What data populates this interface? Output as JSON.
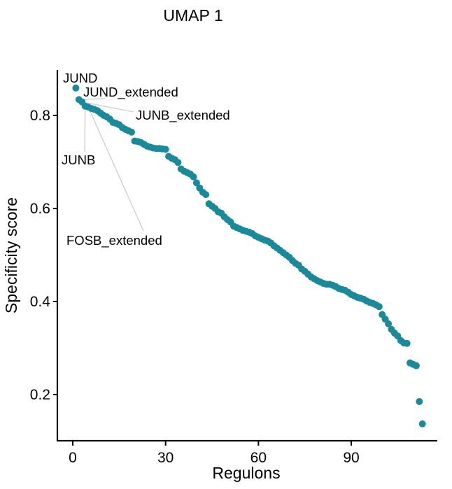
{
  "chart_data": {
    "type": "scatter",
    "title": "UMAP 1",
    "xlabel": "Regulons",
    "ylabel": "Specificity score",
    "xlim": [
      -4.5,
      118
    ],
    "ylim": [
      0.1,
      0.9
    ],
    "xticks": [
      0,
      30,
      60,
      90
    ],
    "yticks": [
      0.2,
      0.4,
      0.6,
      0.8
    ],
    "xtick_labels": [
      "0",
      "30",
      "60",
      "90"
    ],
    "ytick_labels": [
      "0.2",
      "0.4",
      "0.6",
      "0.8"
    ],
    "grid": false,
    "point_color": "#1a8a9a",
    "points": [
      {
        "x": 1,
        "y": 0.859
      },
      {
        "x": 2,
        "y": 0.834
      },
      {
        "x": 3,
        "y": 0.829
      },
      {
        "x": 4,
        "y": 0.82
      },
      {
        "x": 5,
        "y": 0.818
      },
      {
        "x": 6,
        "y": 0.815
      },
      {
        "x": 7,
        "y": 0.813
      },
      {
        "x": 8,
        "y": 0.81
      },
      {
        "x": 9,
        "y": 0.805
      },
      {
        "x": 10,
        "y": 0.8
      },
      {
        "x": 11,
        "y": 0.797
      },
      {
        "x": 12,
        "y": 0.792
      },
      {
        "x": 13,
        "y": 0.785
      },
      {
        "x": 14,
        "y": 0.783
      },
      {
        "x": 15,
        "y": 0.78
      },
      {
        "x": 16,
        "y": 0.774
      },
      {
        "x": 17,
        "y": 0.77
      },
      {
        "x": 18,
        "y": 0.767
      },
      {
        "x": 19,
        "y": 0.764
      },
      {
        "x": 20,
        "y": 0.745
      },
      {
        "x": 21,
        "y": 0.744
      },
      {
        "x": 22,
        "y": 0.742
      },
      {
        "x": 23,
        "y": 0.738
      },
      {
        "x": 24,
        "y": 0.734
      },
      {
        "x": 25,
        "y": 0.732
      },
      {
        "x": 26,
        "y": 0.73
      },
      {
        "x": 27,
        "y": 0.729
      },
      {
        "x": 28,
        "y": 0.729
      },
      {
        "x": 29,
        "y": 0.728
      },
      {
        "x": 30,
        "y": 0.727
      },
      {
        "x": 31,
        "y": 0.712
      },
      {
        "x": 32,
        "y": 0.708
      },
      {
        "x": 33,
        "y": 0.705
      },
      {
        "x": 34,
        "y": 0.699
      },
      {
        "x": 35,
        "y": 0.685
      },
      {
        "x": 36,
        "y": 0.68
      },
      {
        "x": 37,
        "y": 0.677
      },
      {
        "x": 38,
        "y": 0.674
      },
      {
        "x": 39,
        "y": 0.668
      },
      {
        "x": 40,
        "y": 0.655
      },
      {
        "x": 41,
        "y": 0.644
      },
      {
        "x": 42,
        "y": 0.635
      },
      {
        "x": 43,
        "y": 0.63
      },
      {
        "x": 44,
        "y": 0.61
      },
      {
        "x": 45,
        "y": 0.605
      },
      {
        "x": 46,
        "y": 0.6
      },
      {
        "x": 47,
        "y": 0.593
      },
      {
        "x": 48,
        "y": 0.59
      },
      {
        "x": 49,
        "y": 0.582
      },
      {
        "x": 50,
        "y": 0.576
      },
      {
        "x": 51,
        "y": 0.571
      },
      {
        "x": 52,
        "y": 0.562
      },
      {
        "x": 53,
        "y": 0.559
      },
      {
        "x": 54,
        "y": 0.556
      },
      {
        "x": 55,
        "y": 0.553
      },
      {
        "x": 56,
        "y": 0.551
      },
      {
        "x": 57,
        "y": 0.549
      },
      {
        "x": 58,
        "y": 0.546
      },
      {
        "x": 59,
        "y": 0.541
      },
      {
        "x": 60,
        "y": 0.538
      },
      {
        "x": 61,
        "y": 0.535
      },
      {
        "x": 62,
        "y": 0.532
      },
      {
        "x": 63,
        "y": 0.53
      },
      {
        "x": 64,
        "y": 0.526
      },
      {
        "x": 65,
        "y": 0.52
      },
      {
        "x": 66,
        "y": 0.515
      },
      {
        "x": 67,
        "y": 0.51
      },
      {
        "x": 68,
        "y": 0.505
      },
      {
        "x": 69,
        "y": 0.5
      },
      {
        "x": 70,
        "y": 0.495
      },
      {
        "x": 71,
        "y": 0.488
      },
      {
        "x": 72,
        "y": 0.482
      },
      {
        "x": 73,
        "y": 0.478
      },
      {
        "x": 74,
        "y": 0.47
      },
      {
        "x": 75,
        "y": 0.465
      },
      {
        "x": 76,
        "y": 0.459
      },
      {
        "x": 77,
        "y": 0.453
      },
      {
        "x": 78,
        "y": 0.449
      },
      {
        "x": 79,
        "y": 0.445
      },
      {
        "x": 80,
        "y": 0.442
      },
      {
        "x": 81,
        "y": 0.439
      },
      {
        "x": 82,
        "y": 0.437
      },
      {
        "x": 83,
        "y": 0.437
      },
      {
        "x": 84,
        "y": 0.435
      },
      {
        "x": 85,
        "y": 0.432
      },
      {
        "x": 86,
        "y": 0.428
      },
      {
        "x": 87,
        "y": 0.426
      },
      {
        "x": 88,
        "y": 0.424
      },
      {
        "x": 89,
        "y": 0.42
      },
      {
        "x": 90,
        "y": 0.415
      },
      {
        "x": 91,
        "y": 0.412
      },
      {
        "x": 92,
        "y": 0.409
      },
      {
        "x": 93,
        "y": 0.407
      },
      {
        "x": 94,
        "y": 0.405
      },
      {
        "x": 95,
        "y": 0.401
      },
      {
        "x": 96,
        "y": 0.398
      },
      {
        "x": 97,
        "y": 0.396
      },
      {
        "x": 98,
        "y": 0.393
      },
      {
        "x": 99,
        "y": 0.389
      },
      {
        "x": 100,
        "y": 0.372
      },
      {
        "x": 101,
        "y": 0.362
      },
      {
        "x": 102,
        "y": 0.352
      },
      {
        "x": 103,
        "y": 0.34
      },
      {
        "x": 104,
        "y": 0.332
      },
      {
        "x": 105,
        "y": 0.326
      },
      {
        "x": 106,
        "y": 0.316
      },
      {
        "x": 107,
        "y": 0.311
      },
      {
        "x": 108,
        "y": 0.31
      },
      {
        "x": 109,
        "y": 0.268
      },
      {
        "x": 110,
        "y": 0.265
      },
      {
        "x": 111,
        "y": 0.262
      },
      {
        "x": 112,
        "y": 0.185
      },
      {
        "x": 113,
        "y": 0.137
      }
    ],
    "annotations": [
      {
        "label": "JUND",
        "x": 1,
        "y": 0.859
      },
      {
        "label": "JUND_extended",
        "x": 2,
        "y": 0.834
      },
      {
        "label": "JUNB_extended",
        "x": 3,
        "y": 0.829
      },
      {
        "label": "JUNB",
        "x": 4,
        "y": 0.82
      },
      {
        "label": "FOSB_extended",
        "x": 5,
        "y": 0.818
      }
    ]
  }
}
